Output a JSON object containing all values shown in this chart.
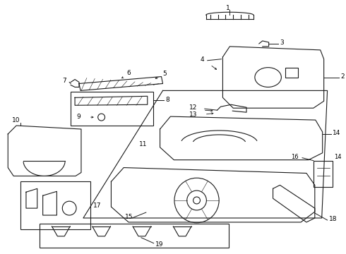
{
  "bg_color": "#ffffff",
  "line_color": "#1a1a1a",
  "label_color": "#000000",
  "fig_w": 4.9,
  "fig_h": 3.6,
  "dpi": 100
}
